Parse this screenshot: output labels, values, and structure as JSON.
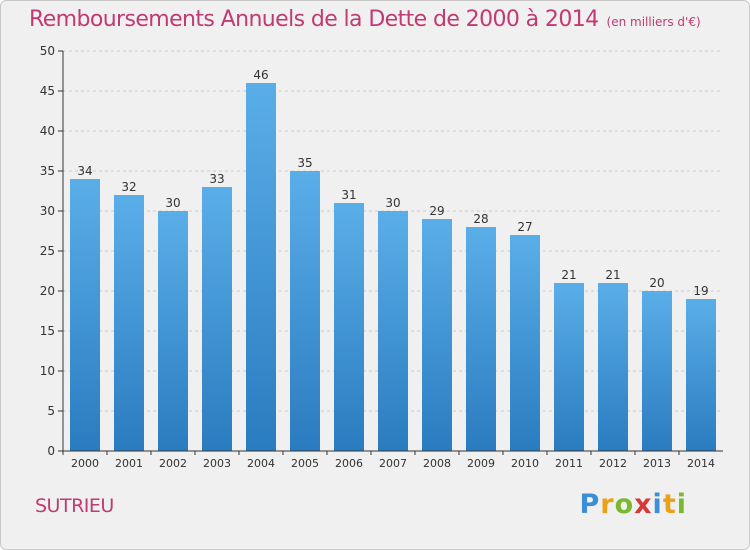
{
  "title": "Remboursements Annuels de la Dette de 2000 à 2014",
  "subtitle": "(en milliers d'€)",
  "commune": "SUTRIEU",
  "logo": {
    "letters": [
      "P",
      "r",
      "o",
      "x",
      "i",
      "t",
      "i"
    ],
    "colors": [
      "#3a8fd6",
      "#e8a21a",
      "#7cb82f",
      "#d43a3a",
      "#3a8fd6",
      "#e8a21a",
      "#7cb82f"
    ]
  },
  "colors": {
    "bar_top": "#5aaee8",
    "bar_bottom": "#2a7cc0",
    "text": "#c03a73",
    "axis": "#333333",
    "grid": "#cccccc"
  },
  "chart_data": {
    "type": "bar",
    "categories": [
      "2000",
      "2001",
      "2002",
      "2003",
      "2004",
      "2005",
      "2006",
      "2007",
      "2008",
      "2009",
      "2010",
      "2011",
      "2012",
      "2013",
      "2014"
    ],
    "values": [
      34,
      32,
      30,
      33,
      46,
      35,
      31,
      30,
      29,
      28,
      27,
      21,
      21,
      20,
      19
    ],
    "ylim": [
      0,
      50
    ],
    "yticks": [
      0,
      5,
      10,
      15,
      20,
      25,
      30,
      35,
      40,
      45,
      50
    ],
    "grid": true,
    "data_labels": true
  }
}
